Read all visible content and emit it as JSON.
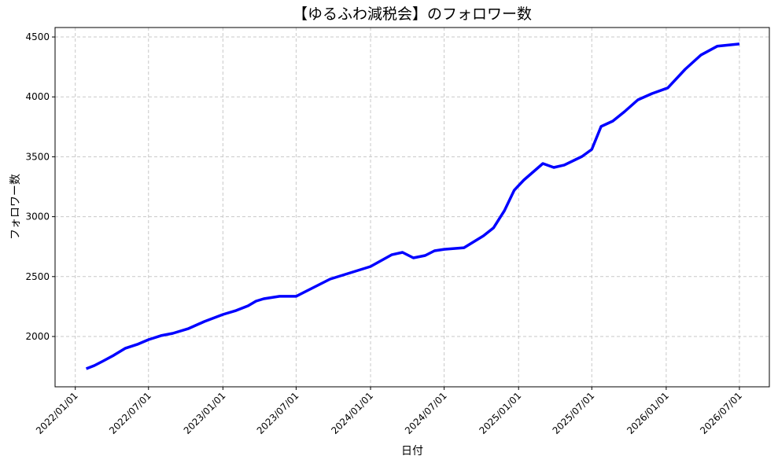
{
  "chart_data": {
    "type": "line",
    "title": "【ゆるふわ減税会】のフォロワー数",
    "xlabel": "日付",
    "ylabel": "フォロワー数",
    "x": [
      "2022/01/28",
      "2022/02/17",
      "2022/03/08",
      "2022/04/06",
      "2022/05/05",
      "2022/06/03",
      "2022/07/01",
      "2022/08/01",
      "2022/08/30",
      "2022/10/08",
      "2022/11/16",
      "2023/01/01",
      "2023/02/03",
      "2023/03/04",
      "2023/03/24",
      "2023/04/12",
      "2023/05/21",
      "2023/07/01",
      "2023/09/23",
      "2024/01/01",
      "2024/02/22",
      "2024/03/20",
      "2024/04/16",
      "2024/05/15",
      "2024/06/07",
      "2024/07/01",
      "2024/08/19",
      "2024/10/06",
      "2024/10/31",
      "2024/11/27",
      "2024/12/21",
      "2025/01/14",
      "2025/03/02",
      "2025/03/29",
      "2025/04/24",
      "2025/06/07",
      "2025/07/01",
      "2025/07/24",
      "2025/08/22",
      "2025/09/20",
      "2025/10/23",
      "2025/11/27",
      "2026/01/05",
      "2026/02/17",
      "2026/03/28",
      "2026/05/07",
      "2026/07/01"
    ],
    "series": [
      {
        "name": "フォロワー数",
        "color": "#0000ff",
        "values": [
          1731,
          1757,
          1790,
          1843,
          1902,
          1934,
          1974,
          2007,
          2026,
          2066,
          2125,
          2184,
          2217,
          2256,
          2295,
          2315,
          2335,
          2335,
          2479,
          2584,
          2682,
          2702,
          2656,
          2676,
          2715,
          2728,
          2741,
          2840,
          2906,
          3050,
          3220,
          3306,
          3444,
          3411,
          3431,
          3503,
          3562,
          3753,
          3798,
          3877,
          3975,
          4028,
          4075,
          4231,
          4350,
          4423,
          4442
        ]
      }
    ],
    "xlim": [
      "2021/11/12",
      "2026/09/13"
    ],
    "xticks": [
      "2022/01/01",
      "2022/07/01",
      "2023/01/01",
      "2023/07/01",
      "2024/01/01",
      "2024/07/01",
      "2025/01/01",
      "2025/07/01",
      "2026/01/01",
      "2026/07/01"
    ],
    "ylim": [
      1580,
      4579
    ],
    "yticks": [
      2000,
      2500,
      3000,
      3500,
      4000,
      4500
    ],
    "grid": true
  }
}
